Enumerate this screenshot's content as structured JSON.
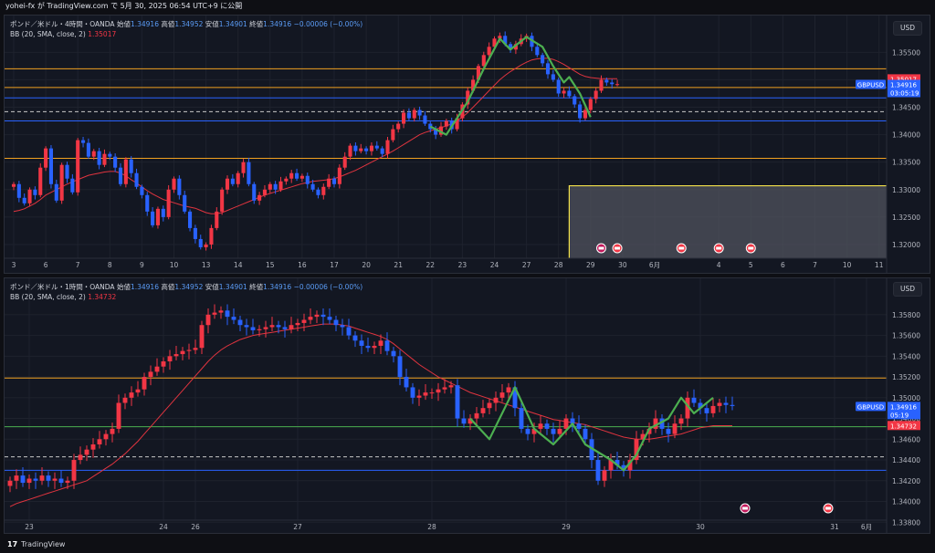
{
  "header": {
    "publish_line": "yohei-fx が TradingView.com で 5月 30, 2025 06:54 UTC+9 に公開"
  },
  "footer": {
    "brand": "TradingView",
    "logo_glyph": "17"
  },
  "colors": {
    "bg": "#131722",
    "grid": "#1e222d",
    "up": "#f23645",
    "down": "#2962ff",
    "bb_mid": "#e0343f",
    "wave": "#4caf50",
    "orange_line": "#f0a020",
    "blue_line": "#2962ff",
    "zone_border": "#f3e14a",
    "zone_fill": "#50535e"
  },
  "chart_data": [
    {
      "type": "candlestick",
      "legend": {
        "symbol": "ポンド／米ドル・4時間・OANDA",
        "o_label": "始値",
        "o": "1.34916",
        "h_label": "高値",
        "h": "1.34952",
        "l_label": "安値",
        "l": "1.34901",
        "c_label": "終値",
        "c": "1.34916",
        "chg": "−0.00006 (−0.00%)"
      },
      "indicator": {
        "name": "BB (20, SMA, close, 2)",
        "value": "1.35017"
      },
      "currency": "USD",
      "ylim": [
        1.3175,
        1.3617
      ],
      "y_ticks": [
        "1.35500",
        "1.35000",
        "1.34500",
        "1.34000",
        "1.33500",
        "1.33000",
        "1.32500",
        "1.32000"
      ],
      "x_ticks": [
        {
          "label": "3",
          "i": 0
        },
        {
          "label": "6",
          "i": 6
        },
        {
          "label": "7",
          "i": 12
        },
        {
          "label": "8",
          "i": 18
        },
        {
          "label": "9",
          "i": 24
        },
        {
          "label": "10",
          "i": 30
        },
        {
          "label": "13",
          "i": 36
        },
        {
          "label": "14",
          "i": 42
        },
        {
          "label": "15",
          "i": 48
        },
        {
          "label": "16",
          "i": 54
        },
        {
          "label": "17",
          "i": 60
        },
        {
          "label": "20",
          "i": 66
        },
        {
          "label": "21",
          "i": 72
        },
        {
          "label": "22",
          "i": 78
        },
        {
          "label": "23",
          "i": 84
        },
        {
          "label": "24",
          "i": 90
        },
        {
          "label": "27",
          "i": 96
        },
        {
          "label": "28",
          "i": 102
        },
        {
          "label": "29",
          "i": 108
        },
        {
          "label": "30",
          "i": 114
        },
        {
          "label": "6月",
          "i": 120
        },
        {
          "label": "4",
          "i": 132
        },
        {
          "label": "5",
          "i": 138
        },
        {
          "label": "6",
          "i": 144
        },
        {
          "label": "7",
          "i": 150
        },
        {
          "label": "10",
          "i": 156
        },
        {
          "label": "11",
          "i": 162
        }
      ],
      "series_close": [
        1.331,
        1.3285,
        1.3275,
        1.33,
        1.329,
        1.334,
        1.3375,
        1.331,
        1.328,
        1.3345,
        1.332,
        1.3295,
        1.339,
        1.3385,
        1.336,
        1.337,
        1.3345,
        1.3365,
        1.336,
        1.334,
        1.331,
        1.3355,
        1.333,
        1.3305,
        1.329,
        1.326,
        1.3235,
        1.3265,
        1.325,
        1.33,
        1.332,
        1.329,
        1.326,
        1.323,
        1.321,
        1.3195,
        1.32,
        1.323,
        1.326,
        1.33,
        1.332,
        1.331,
        1.333,
        1.335,
        1.331,
        1.328,
        1.329,
        1.33,
        1.331,
        1.33,
        1.3315,
        1.332,
        1.333,
        1.332,
        1.3325,
        1.331,
        1.33,
        1.329,
        1.3305,
        1.332,
        1.331,
        1.334,
        1.336,
        1.338,
        1.337,
        1.3375,
        1.337,
        1.338,
        1.3375,
        1.3365,
        1.339,
        1.341,
        1.342,
        1.344,
        1.343,
        1.3445,
        1.3435,
        1.342,
        1.341,
        1.34,
        1.3415,
        1.3425,
        1.341,
        1.343,
        1.3455,
        1.348,
        1.35,
        1.3525,
        1.3545,
        1.356,
        1.3575,
        1.358,
        1.3565,
        1.3555,
        1.3565,
        1.3575,
        1.358,
        1.356,
        1.3545,
        1.353,
        1.351,
        1.35,
        1.3475,
        1.348,
        1.347,
        1.3455,
        1.343,
        1.3445,
        1.3465,
        1.348,
        1.35,
        1.3495,
        1.3492,
        1.3492
      ],
      "bb_mid": [
        1.326,
        1.3262,
        1.3265,
        1.327,
        1.3275,
        1.3282,
        1.329,
        1.3295,
        1.33,
        1.3305,
        1.331,
        1.3314,
        1.3318,
        1.3322,
        1.3326,
        1.3328,
        1.333,
        1.3332,
        1.3333,
        1.3333,
        1.333,
        1.3325,
        1.3318,
        1.3312,
        1.3305,
        1.3298,
        1.3292,
        1.3287,
        1.3282,
        1.3279,
        1.3276,
        1.3273,
        1.327,
        1.3268,
        1.3266,
        1.3262,
        1.3258,
        1.3256,
        1.3256,
        1.3258,
        1.3262,
        1.3266,
        1.327,
        1.3274,
        1.3278,
        1.3282,
        1.3286,
        1.329,
        1.3293,
        1.3296,
        1.3299,
        1.3302,
        1.3305,
        1.3308,
        1.3311,
        1.3313,
        1.3315,
        1.3316,
        1.3317,
        1.3318,
        1.332,
        1.3323,
        1.3327,
        1.3331,
        1.3335,
        1.334,
        1.3345,
        1.335,
        1.3355,
        1.336,
        1.3365,
        1.337,
        1.3376,
        1.3382,
        1.3388,
        1.3394,
        1.34,
        1.3404,
        1.3407,
        1.341,
        1.3413,
        1.3416,
        1.342,
        1.3425,
        1.3432,
        1.344,
        1.345,
        1.346,
        1.347,
        1.348,
        1.349,
        1.35,
        1.3508,
        1.3515,
        1.3521,
        1.3527,
        1.3532,
        1.3536,
        1.3538,
        1.3539,
        1.3539,
        1.3537,
        1.3533,
        1.3528,
        1.3522,
        1.3516,
        1.351,
        1.3506,
        1.3504,
        1.3503,
        1.3502,
        1.3502,
        1.3502,
        1.3502
      ],
      "hlines": [
        {
          "y": 1.352,
          "color": "orange"
        },
        {
          "y": 1.3486,
          "color": "orange"
        },
        {
          "y": 1.3467,
          "color": "blue"
        },
        {
          "y": 1.3442,
          "color": "dashed"
        },
        {
          "y": 1.3425,
          "color": "blue"
        },
        {
          "y": 1.3357,
          "color": "orange"
        }
      ],
      "wave": [
        [
          78,
          1.3415
        ],
        [
          81,
          1.34
        ],
        [
          85,
          1.346
        ],
        [
          88,
          1.352
        ],
        [
          91,
          1.3575
        ],
        [
          93,
          1.3555
        ],
        [
          96,
          1.3578
        ],
        [
          99,
          1.356
        ],
        [
          101,
          1.3525
        ],
        [
          103,
          1.3495
        ],
        [
          104,
          1.3505
        ],
        [
          106,
          1.3475
        ],
        [
          108,
          1.3432
        ]
      ],
      "price_tags": [
        {
          "label": "1.35017",
          "value": 1.35017,
          "color": "#f23645"
        },
        {
          "label": "GBPUSD",
          "value": 1.34916,
          "color": "#2962ff"
        },
        {
          "label": "1.34916",
          "value": 1.34916,
          "color": "#2962ff"
        },
        {
          "label": "03:05:19",
          "value": 1.34916,
          "color": "#2962ff"
        }
      ]
    },
    {
      "type": "candlestick",
      "legend": {
        "symbol": "ポンド／米ドル・1時間・OANDA",
        "o_label": "始値",
        "o": "1.34916",
        "h_label": "高値",
        "h": "1.34952",
        "l_label": "安値",
        "l": "1.34901",
        "c_label": "終値",
        "c": "1.34916",
        "chg": "−0.00006 (−0.00%)"
      },
      "indicator": {
        "name": "BB (20, SMA, close, 2)",
        "value": "1.34732"
      },
      "currency": "USD",
      "ylim": [
        1.3382,
        1.3608
      ],
      "y_ticks": [
        "1.35800",
        "1.35600",
        "1.35400",
        "1.35200",
        "1.35000",
        "1.34800",
        "1.34600",
        "1.34400",
        "1.34200",
        "1.34000",
        "1.33800"
      ],
      "x_ticks": [
        {
          "label": "23",
          "i": 3
        },
        {
          "label": "24",
          "i": 24
        },
        {
          "label": "26",
          "i": 29
        },
        {
          "label": "27",
          "i": 45
        },
        {
          "label": "28",
          "i": 66
        },
        {
          "label": "29",
          "i": 87
        },
        {
          "label": "30",
          "i": 108
        },
        {
          "label": "31",
          "i": 129
        },
        {
          "label": "6月",
          "i": 134
        }
      ],
      "series_close": [
        1.342,
        1.3425,
        1.3418,
        1.3422,
        1.342,
        1.3425,
        1.342,
        1.3422,
        1.3418,
        1.342,
        1.344,
        1.3445,
        1.345,
        1.3455,
        1.346,
        1.3465,
        1.347,
        1.3495,
        1.35,
        1.3505,
        1.3508,
        1.352,
        1.3525,
        1.353,
        1.3535,
        1.354,
        1.3542,
        1.3545,
        1.3546,
        1.3548,
        1.357,
        1.358,
        1.3582,
        1.3584,
        1.3578,
        1.3575,
        1.357,
        1.3568,
        1.3565,
        1.3566,
        1.3568,
        1.357,
        1.3568,
        1.3566,
        1.357,
        1.3572,
        1.3575,
        1.3578,
        1.358,
        1.3578,
        1.3575,
        1.357,
        1.3568,
        1.356,
        1.3555,
        1.355,
        1.3548,
        1.355,
        1.3555,
        1.3545,
        1.354,
        1.352,
        1.351,
        1.35,
        1.3502,
        1.3505,
        1.3505,
        1.3508,
        1.351,
        1.3512,
        1.348,
        1.3475,
        1.348,
        1.3485,
        1.349,
        1.3495,
        1.35,
        1.3505,
        1.351,
        1.349,
        1.347,
        1.3465,
        1.347,
        1.3475,
        1.347,
        1.3465,
        1.347,
        1.348,
        1.3475,
        1.347,
        1.346,
        1.344,
        1.342,
        1.343,
        1.344,
        1.3435,
        1.343,
        1.344,
        1.346,
        1.3465,
        1.347,
        1.348,
        1.347,
        1.3465,
        1.3475,
        1.348,
        1.35,
        1.3495,
        1.349,
        1.3485,
        1.3492,
        1.3495,
        1.3493,
        1.3492
      ],
      "bb_mid": [
        1.3395,
        1.3398,
        1.34,
        1.3402,
        1.3404,
        1.3406,
        1.3408,
        1.341,
        1.3412,
        1.3414,
        1.3416,
        1.3418,
        1.342,
        1.3424,
        1.3428,
        1.3432,
        1.3436,
        1.3441,
        1.3446,
        1.3452,
        1.3458,
        1.3465,
        1.3472,
        1.3479,
        1.3486,
        1.3493,
        1.35,
        1.3507,
        1.3514,
        1.3521,
        1.3528,
        1.3535,
        1.3541,
        1.3546,
        1.355,
        1.3553,
        1.3556,
        1.3558,
        1.356,
        1.3561,
        1.3562,
        1.3563,
        1.3564,
        1.3565,
        1.3566,
        1.3567,
        1.3568,
        1.3569,
        1.357,
        1.3571,
        1.3571,
        1.3571,
        1.357,
        1.3569,
        1.3567,
        1.3565,
        1.3563,
        1.3561,
        1.3559,
        1.3556,
        1.3552,
        1.3547,
        1.3542,
        1.3537,
        1.3532,
        1.3528,
        1.3524,
        1.352,
        1.3517,
        1.3514,
        1.3511,
        1.3508,
        1.3505,
        1.3503,
        1.3501,
        1.3499,
        1.3497,
        1.3495,
        1.3493,
        1.3491,
        1.3489,
        1.3487,
        1.3485,
        1.3483,
        1.3481,
        1.3479,
        1.3478,
        1.3477,
        1.3476,
        1.3475,
        1.3474,
        1.3472,
        1.347,
        1.3468,
        1.3466,
        1.3464,
        1.3462,
        1.3461,
        1.346,
        1.346,
        1.346,
        1.3461,
        1.3462,
        1.3463,
        1.3464,
        1.3465,
        1.3467,
        1.3469,
        1.3471,
        1.3472,
        1.3473,
        1.3473,
        1.3473,
        1.3473
      ],
      "hlines": [
        {
          "y": 1.3519,
          "color": "orange"
        },
        {
          "y": 1.3472,
          "color": "green"
        },
        {
          "y": 1.3443,
          "color": "dashed"
        },
        {
          "y": 1.343,
          "color": "blue"
        }
      ],
      "wave": [
        [
          72,
          1.348
        ],
        [
          75,
          1.346
        ],
        [
          79,
          1.351
        ],
        [
          82,
          1.347
        ],
        [
          85,
          1.3455
        ],
        [
          88,
          1.3475
        ],
        [
          90,
          1.3455
        ],
        [
          94,
          1.344
        ],
        [
          96,
          1.343
        ],
        [
          98,
          1.3445
        ],
        [
          100,
          1.347
        ],
        [
          103,
          1.348
        ],
        [
          105,
          1.35
        ],
        [
          107,
          1.3485
        ],
        [
          110,
          1.35
        ]
      ],
      "price_tags": [
        {
          "label": "GBPUSD",
          "value": 1.34916,
          "color": "#2962ff"
        },
        {
          "label": "1.34916",
          "value": 1.34916,
          "color": "#2962ff"
        },
        {
          "label": "05:19",
          "value": 1.34916,
          "color": "#2962ff"
        },
        {
          "label": "1.34732",
          "value": 1.34732,
          "color": "#f23645"
        }
      ]
    }
  ]
}
